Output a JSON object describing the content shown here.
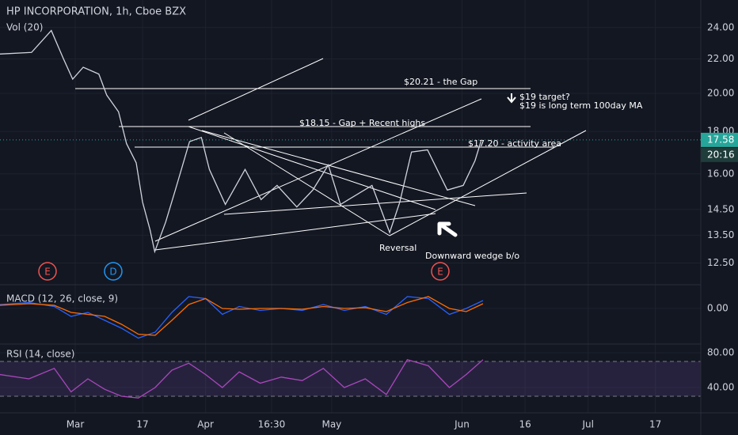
{
  "chart_data": [
    {
      "type": "line",
      "title": "HP INCORPORATION, 1h, Cboe BZX",
      "subtitle": "Vol (20)",
      "color": "#d1d4dc",
      "log_scale": true,
      "x": [
        43.1,
        50.6,
        55.3,
        58.2,
        60.4,
        62.9,
        66.6,
        68.5,
        71.3,
        73.2,
        75.5,
        77,
        78.8,
        79.9,
        82.5,
        84.8,
        88.2,
        91,
        92.9,
        96.7,
        101.4,
        105.2,
        109,
        113.7,
        117.5,
        121.2,
        124.1,
        131.6,
        135.8,
        138.2,
        141,
        144.8,
        149.5,
        153.3,
        156.1,
        157.6
      ],
      "values": [
        22.3,
        22.4,
        23.8,
        22.0,
        20.8,
        21.5,
        21.1,
        19.9,
        19.0,
        17.4,
        16.5,
        14.8,
        13.7,
        12.9,
        14.0,
        15.3,
        17.5,
        17.7,
        16.2,
        14.7,
        16.2,
        14.9,
        15.5,
        14.6,
        15.3,
        16.4,
        14.7,
        15.5,
        13.6,
        14.8,
        17.0,
        17.1,
        15.3,
        15.5,
        16.6,
        17.58
      ],
      "xlim": [
        43.1,
        209.8
      ],
      "xticks": [
        {
          "value": 61,
          "label": "Mar"
        },
        {
          "value": 77,
          "label": "17"
        },
        {
          "value": 92,
          "label": "Apr"
        },
        {
          "value": 107.7,
          "label": "16:30"
        },
        {
          "value": 122,
          "label": "May"
        },
        {
          "value": 153,
          "label": "Jun"
        },
        {
          "value": 168,
          "label": "16"
        },
        {
          "value": 183,
          "label": "Jul"
        },
        {
          "value": 199,
          "label": "17"
        }
      ],
      "ylim": [
        11.9,
        25.9
      ],
      "yticks": [
        {
          "value": 12.5,
          "label": "12.50"
        },
        {
          "value": 13.5,
          "label": "13.50"
        },
        {
          "value": 14.5,
          "label": "14.50"
        },
        {
          "value": 16,
          "label": "16.00"
        },
        {
          "value": 18,
          "label": "18.00"
        },
        {
          "value": 20,
          "label": "20.00"
        },
        {
          "value": 22,
          "label": "22.00"
        },
        {
          "value": 24,
          "label": "24.00"
        }
      ],
      "last_value": {
        "value": 17.58,
        "label": "17.58"
      },
      "countdown": "20:16",
      "events": [
        "E",
        "D",
        "E"
      ],
      "annotations": [
        "$20.21 - the Gap",
        "$19 target?",
        "$19 is long term 100day MA",
        "$18.15 - Gap + Recent highs",
        "$17.20 - activity area",
        "Reversal",
        "Downward wedge b/o"
      ]
    },
    {
      "type": "line",
      "title": "MACD (12, 26, close, 9)",
      "x": [
        43,
        50,
        56,
        60,
        64,
        68,
        72,
        76,
        80,
        84,
        88,
        92,
        96,
        100,
        105,
        110,
        115,
        120,
        125,
        130,
        135,
        140,
        145,
        150,
        154,
        158
      ],
      "series": [
        {
          "color": "#2962ff",
          "values": [
            0.1,
            0.15,
            0.05,
            -0.2,
            -0.1,
            -0.3,
            -0.5,
            -0.75,
            -0.6,
            -0.1,
            0.3,
            0.25,
            -0.15,
            0.05,
            -0.05,
            0.0,
            -0.05,
            0.1,
            -0.05,
            0.05,
            -0.15,
            0.3,
            0.25,
            -0.15,
            0.0,
            0.2
          ]
        },
        {
          "color": "#ff6d00",
          "values": [
            0.08,
            0.12,
            0.08,
            -0.1,
            -0.15,
            -0.2,
            -0.4,
            -0.65,
            -0.68,
            -0.3,
            0.1,
            0.25,
            0.0,
            -0.02,
            0.0,
            0.0,
            -0.02,
            0.05,
            0.0,
            0.02,
            -0.08,
            0.15,
            0.3,
            0.0,
            -0.08,
            0.12
          ]
        }
      ],
      "ylim": [
        -0.8,
        0.5
      ],
      "yticks": [
        {
          "value": 0,
          "label": "0.00"
        }
      ]
    },
    {
      "type": "line",
      "title": "RSI (14, close)",
      "color": "#ab47bc",
      "x": [
        43,
        50,
        56,
        60,
        64,
        68,
        72,
        76,
        80,
        84,
        88,
        92,
        96,
        100,
        105,
        110,
        115,
        120,
        125,
        130,
        135,
        140,
        145,
        150,
        154,
        158
      ],
      "values": [
        55,
        50,
        62,
        35,
        50,
        38,
        30,
        28,
        40,
        60,
        68,
        55,
        40,
        58,
        45,
        52,
        48,
        62,
        40,
        50,
        32,
        72,
        65,
        40,
        55,
        72
      ],
      "ylim": [
        12.7,
        85.5
      ],
      "yticks": [
        {
          "value": 80,
          "label": "80.00"
        },
        {
          "value": 40,
          "label": "40.00"
        }
      ],
      "bands": [
        70,
        30
      ]
    }
  ]
}
